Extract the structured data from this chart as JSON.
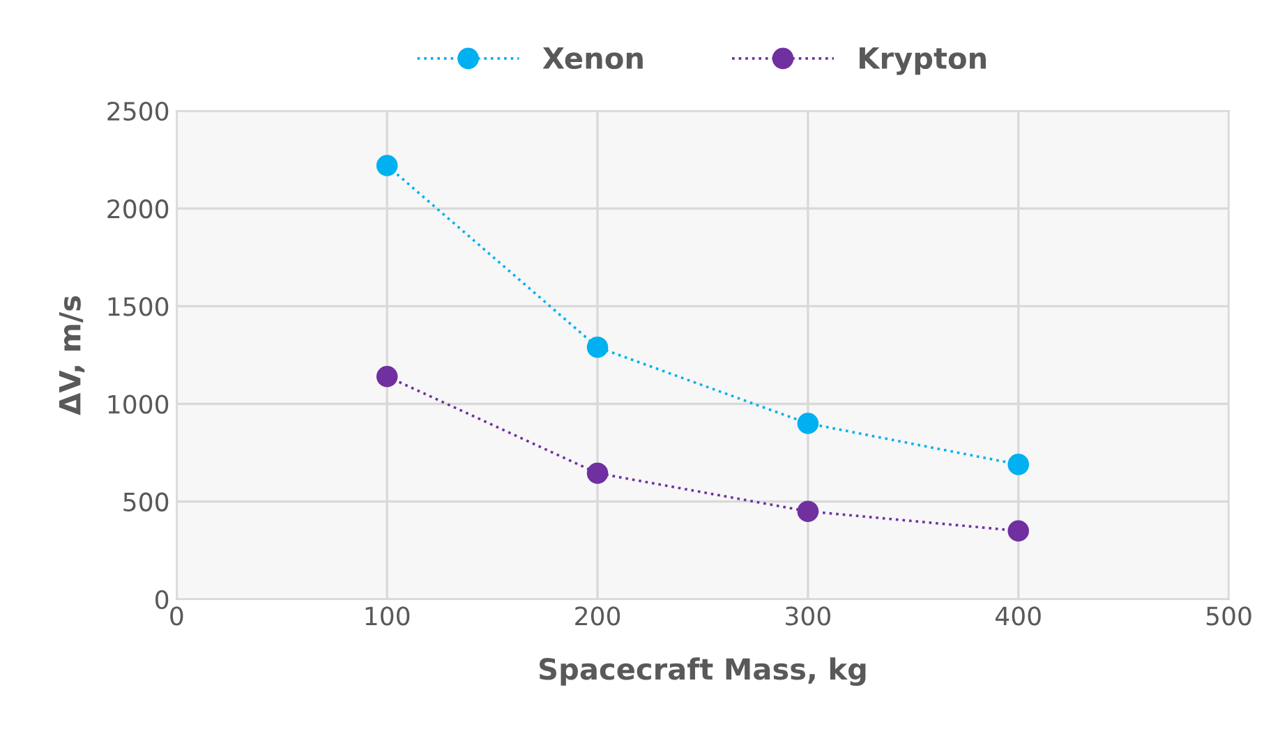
{
  "chart_data": {
    "type": "line",
    "xlabel": "Spacecraft Mass, kg",
    "ylabel": "ΔV, m/s",
    "x": [
      100,
      200,
      300,
      400
    ],
    "series": [
      {
        "name": "Xenon",
        "color": "#00b0f0",
        "values": [
          2220,
          1290,
          900,
          690
        ]
      },
      {
        "name": "Krypton",
        "color": "#7030a0",
        "values": [
          1140,
          645,
          450,
          350
        ]
      }
    ],
    "xlim": [
      0,
      500
    ],
    "xticks": [
      0,
      100,
      200,
      300,
      400,
      500
    ],
    "ylim": [
      0,
      2500
    ],
    "yticks": [
      0,
      500,
      1000,
      1500,
      2000,
      2500
    ],
    "grid": true,
    "legend": "top",
    "marker": "circle",
    "line_style": "dotted"
  }
}
